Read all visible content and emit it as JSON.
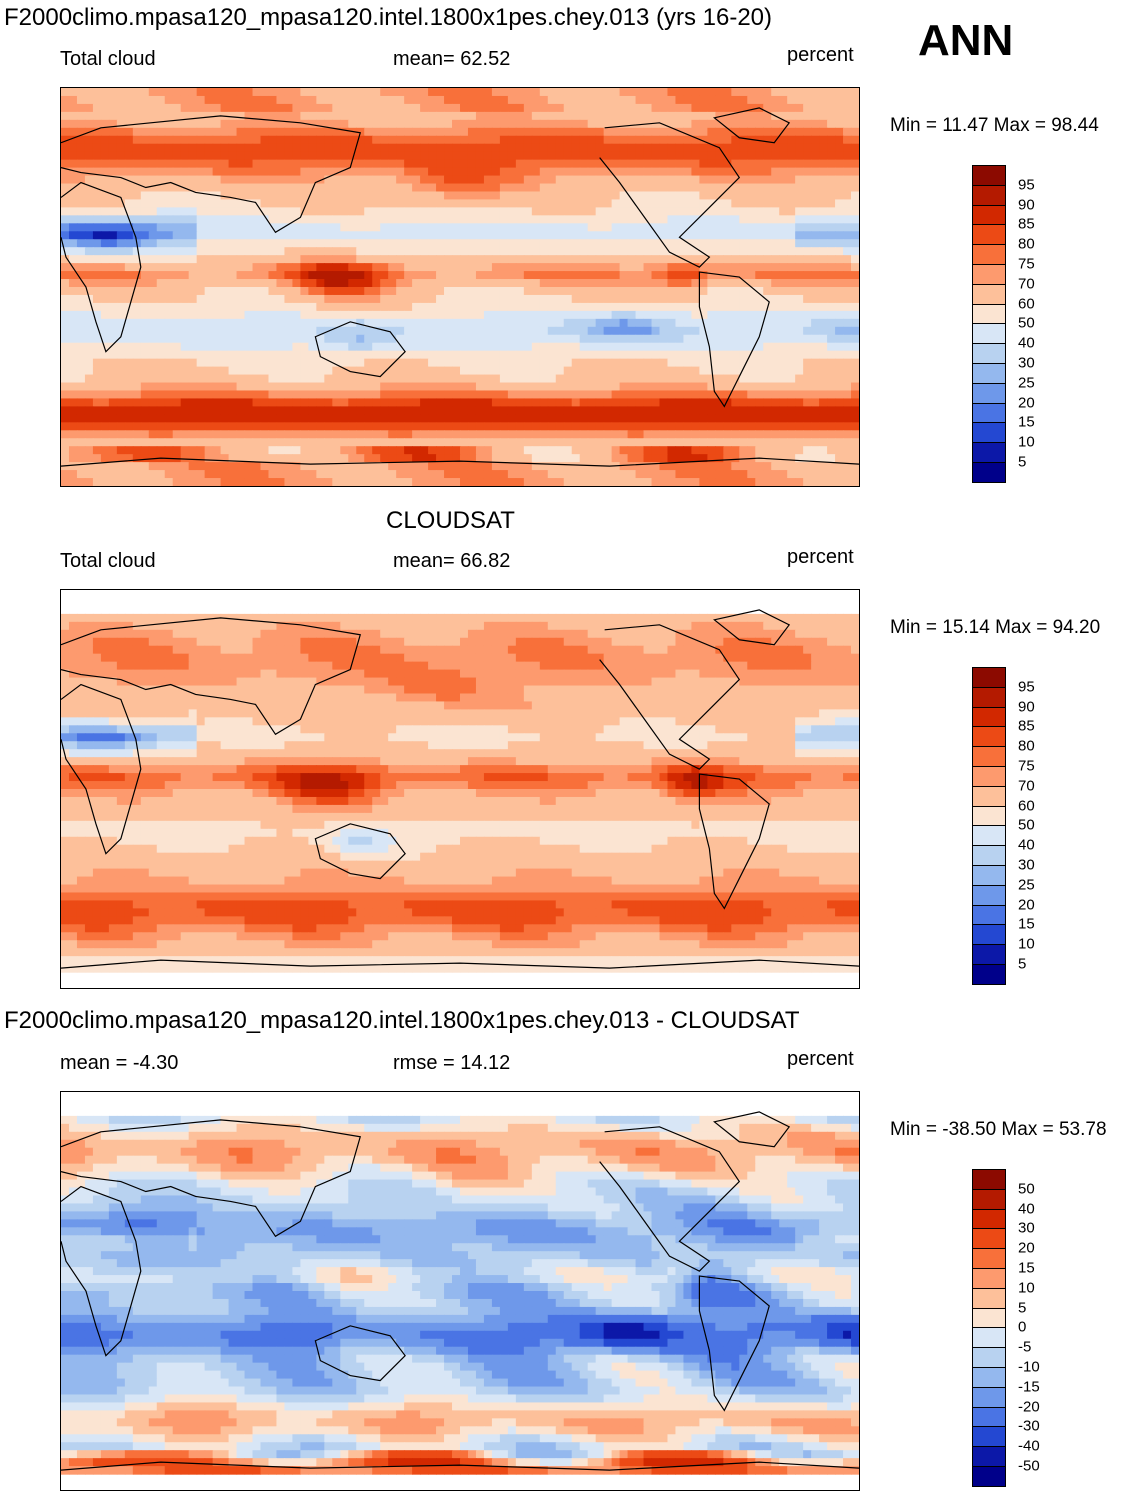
{
  "season": "ANN",
  "chart_data": [
    {
      "type": "heatmap",
      "title": "F2000climo.mpasa120_mpasa120.intel.1800x1pes.chey.013 (yrs 16-20)",
      "variable": "Total cloud",
      "stat_text": "mean=  62.52",
      "mean": 62.52,
      "units": "percent",
      "minmax_text": "Min =  11.47 Max =  98.44",
      "min": 11.47,
      "max": 98.44,
      "levels": [
        "95",
        "90",
        "85",
        "80",
        "75",
        "70",
        "60",
        "50",
        "40",
        "30",
        "25",
        "20",
        "15",
        "10",
        "5"
      ],
      "colors": [
        "#8c0a00",
        "#b41a00",
        "#d22800",
        "#ec4a15",
        "#f8703a",
        "#fd9a6e",
        "#fdc09a",
        "#fbe4d2",
        "#d8e6f6",
        "#b8d2f0",
        "#94b8ee",
        "#6e98ea",
        "#4a74e4",
        "#2448d2",
        "#0c18a8",
        "#00008a"
      ],
      "x": "longitude 0..360",
      "y": "latitude -90..90"
    },
    {
      "type": "heatmap",
      "title": "CLOUDSAT",
      "variable": "Total cloud",
      "stat_text": "mean=  66.82",
      "mean": 66.82,
      "units": "percent",
      "minmax_text": "Min =  15.14 Max =  94.20",
      "min": 15.14,
      "max": 94.2,
      "levels": [
        "95",
        "90",
        "85",
        "80",
        "75",
        "70",
        "60",
        "50",
        "40",
        "30",
        "25",
        "20",
        "15",
        "10",
        "5"
      ],
      "colors": [
        "#8c0a00",
        "#b41a00",
        "#d22800",
        "#ec4a15",
        "#f8703a",
        "#fd9a6e",
        "#fdc09a",
        "#fbe4d2",
        "#d8e6f6",
        "#b8d2f0",
        "#94b8ee",
        "#6e98ea",
        "#4a74e4",
        "#2448d2",
        "#0c18a8",
        "#00008a"
      ]
    },
    {
      "type": "heatmap",
      "title": "F2000climo.mpasa120_mpasa120.intel.1800x1pes.chey.013 - CLOUDSAT",
      "variable": "mean =  -4.30",
      "stat_text": "rmse =  14.12",
      "mean": -4.3,
      "rmse": 14.12,
      "units": "percent",
      "minmax_text": "Min = -38.50 Max =  53.78",
      "min": -38.5,
      "max": 53.78,
      "levels": [
        "50",
        "40",
        "30",
        "20",
        "15",
        "10",
        "5",
        "0",
        "-5",
        "-10",
        "-15",
        "-20",
        "-30",
        "-40",
        "-50"
      ],
      "colors": [
        "#8c0a00",
        "#b41a00",
        "#d22800",
        "#ec4a15",
        "#f8703a",
        "#fd9a6e",
        "#fdc09a",
        "#fbe4d2",
        "#d8e6f6",
        "#b8d2f0",
        "#94b8ee",
        "#6e98ea",
        "#4a74e4",
        "#2448d2",
        "#0c18a8",
        "#00008a"
      ]
    }
  ]
}
